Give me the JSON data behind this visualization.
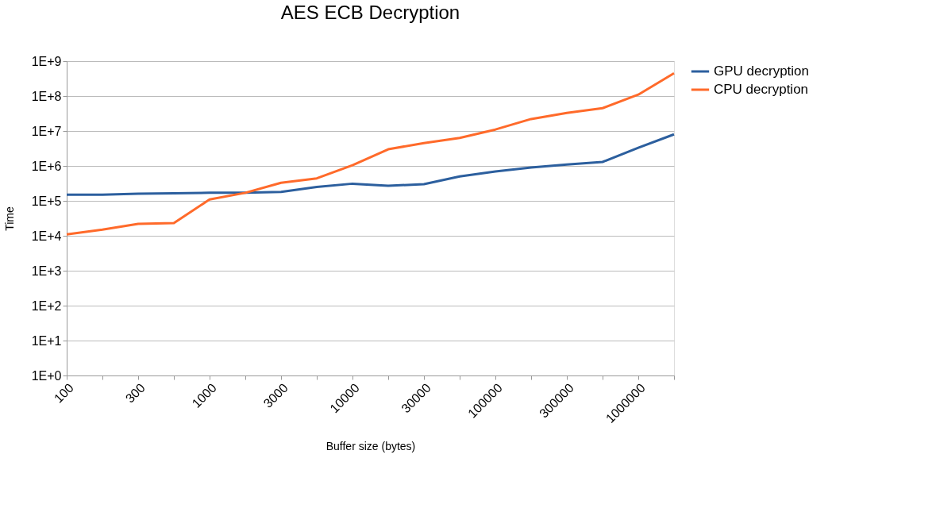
{
  "chart_data": {
    "type": "line",
    "title": "AES ECB Decryption",
    "xlabel": "Buffer size (bytes)",
    "ylabel": "Time",
    "categories": [
      "100",
      null,
      "300",
      null,
      "1000",
      null,
      "3000",
      null,
      "10000",
      null,
      "30000",
      null,
      "100000",
      null,
      "300000",
      null,
      "1000000",
      null
    ],
    "series": [
      {
        "name": "GPU decryption",
        "color": "#2c5f9e",
        "values": [
          150000,
          150000,
          160000,
          165000,
          170000,
          170000,
          180000,
          250000,
          310000,
          270000,
          300000,
          500000,
          690000,
          900000,
          1100000,
          1300000,
          3300000,
          8000000
        ]
      },
      {
        "name": "CPU decryption",
        "color": "#ff6a2a",
        "values": [
          11000,
          15000,
          22000,
          23000,
          110000,
          170000,
          330000,
          440000,
          1050000,
          3000000,
          4500000,
          6300000,
          11000000,
          22000000,
          33000000,
          45000000,
          110000000,
          450000000
        ]
      }
    ],
    "log": "y",
    "ylim": [
      1,
      1000000000
    ],
    "yticks": [
      {
        "value": 1,
        "label": "1E+0"
      },
      {
        "value": 10,
        "label": "1E+1"
      },
      {
        "value": 100,
        "label": "1E+2"
      },
      {
        "value": 1000,
        "label": "1E+3"
      },
      {
        "value": 10000,
        "label": "1E+4"
      },
      {
        "value": 100000,
        "label": "1E+5"
      },
      {
        "value": 1000000,
        "label": "1E+6"
      },
      {
        "value": 10000000,
        "label": "1E+7"
      },
      {
        "value": 100000000,
        "label": "1E+8"
      },
      {
        "value": 1000000000,
        "label": "1E+9"
      }
    ],
    "grid": "y",
    "legend": "right",
    "marker": "none",
    "line_style": "solid"
  }
}
